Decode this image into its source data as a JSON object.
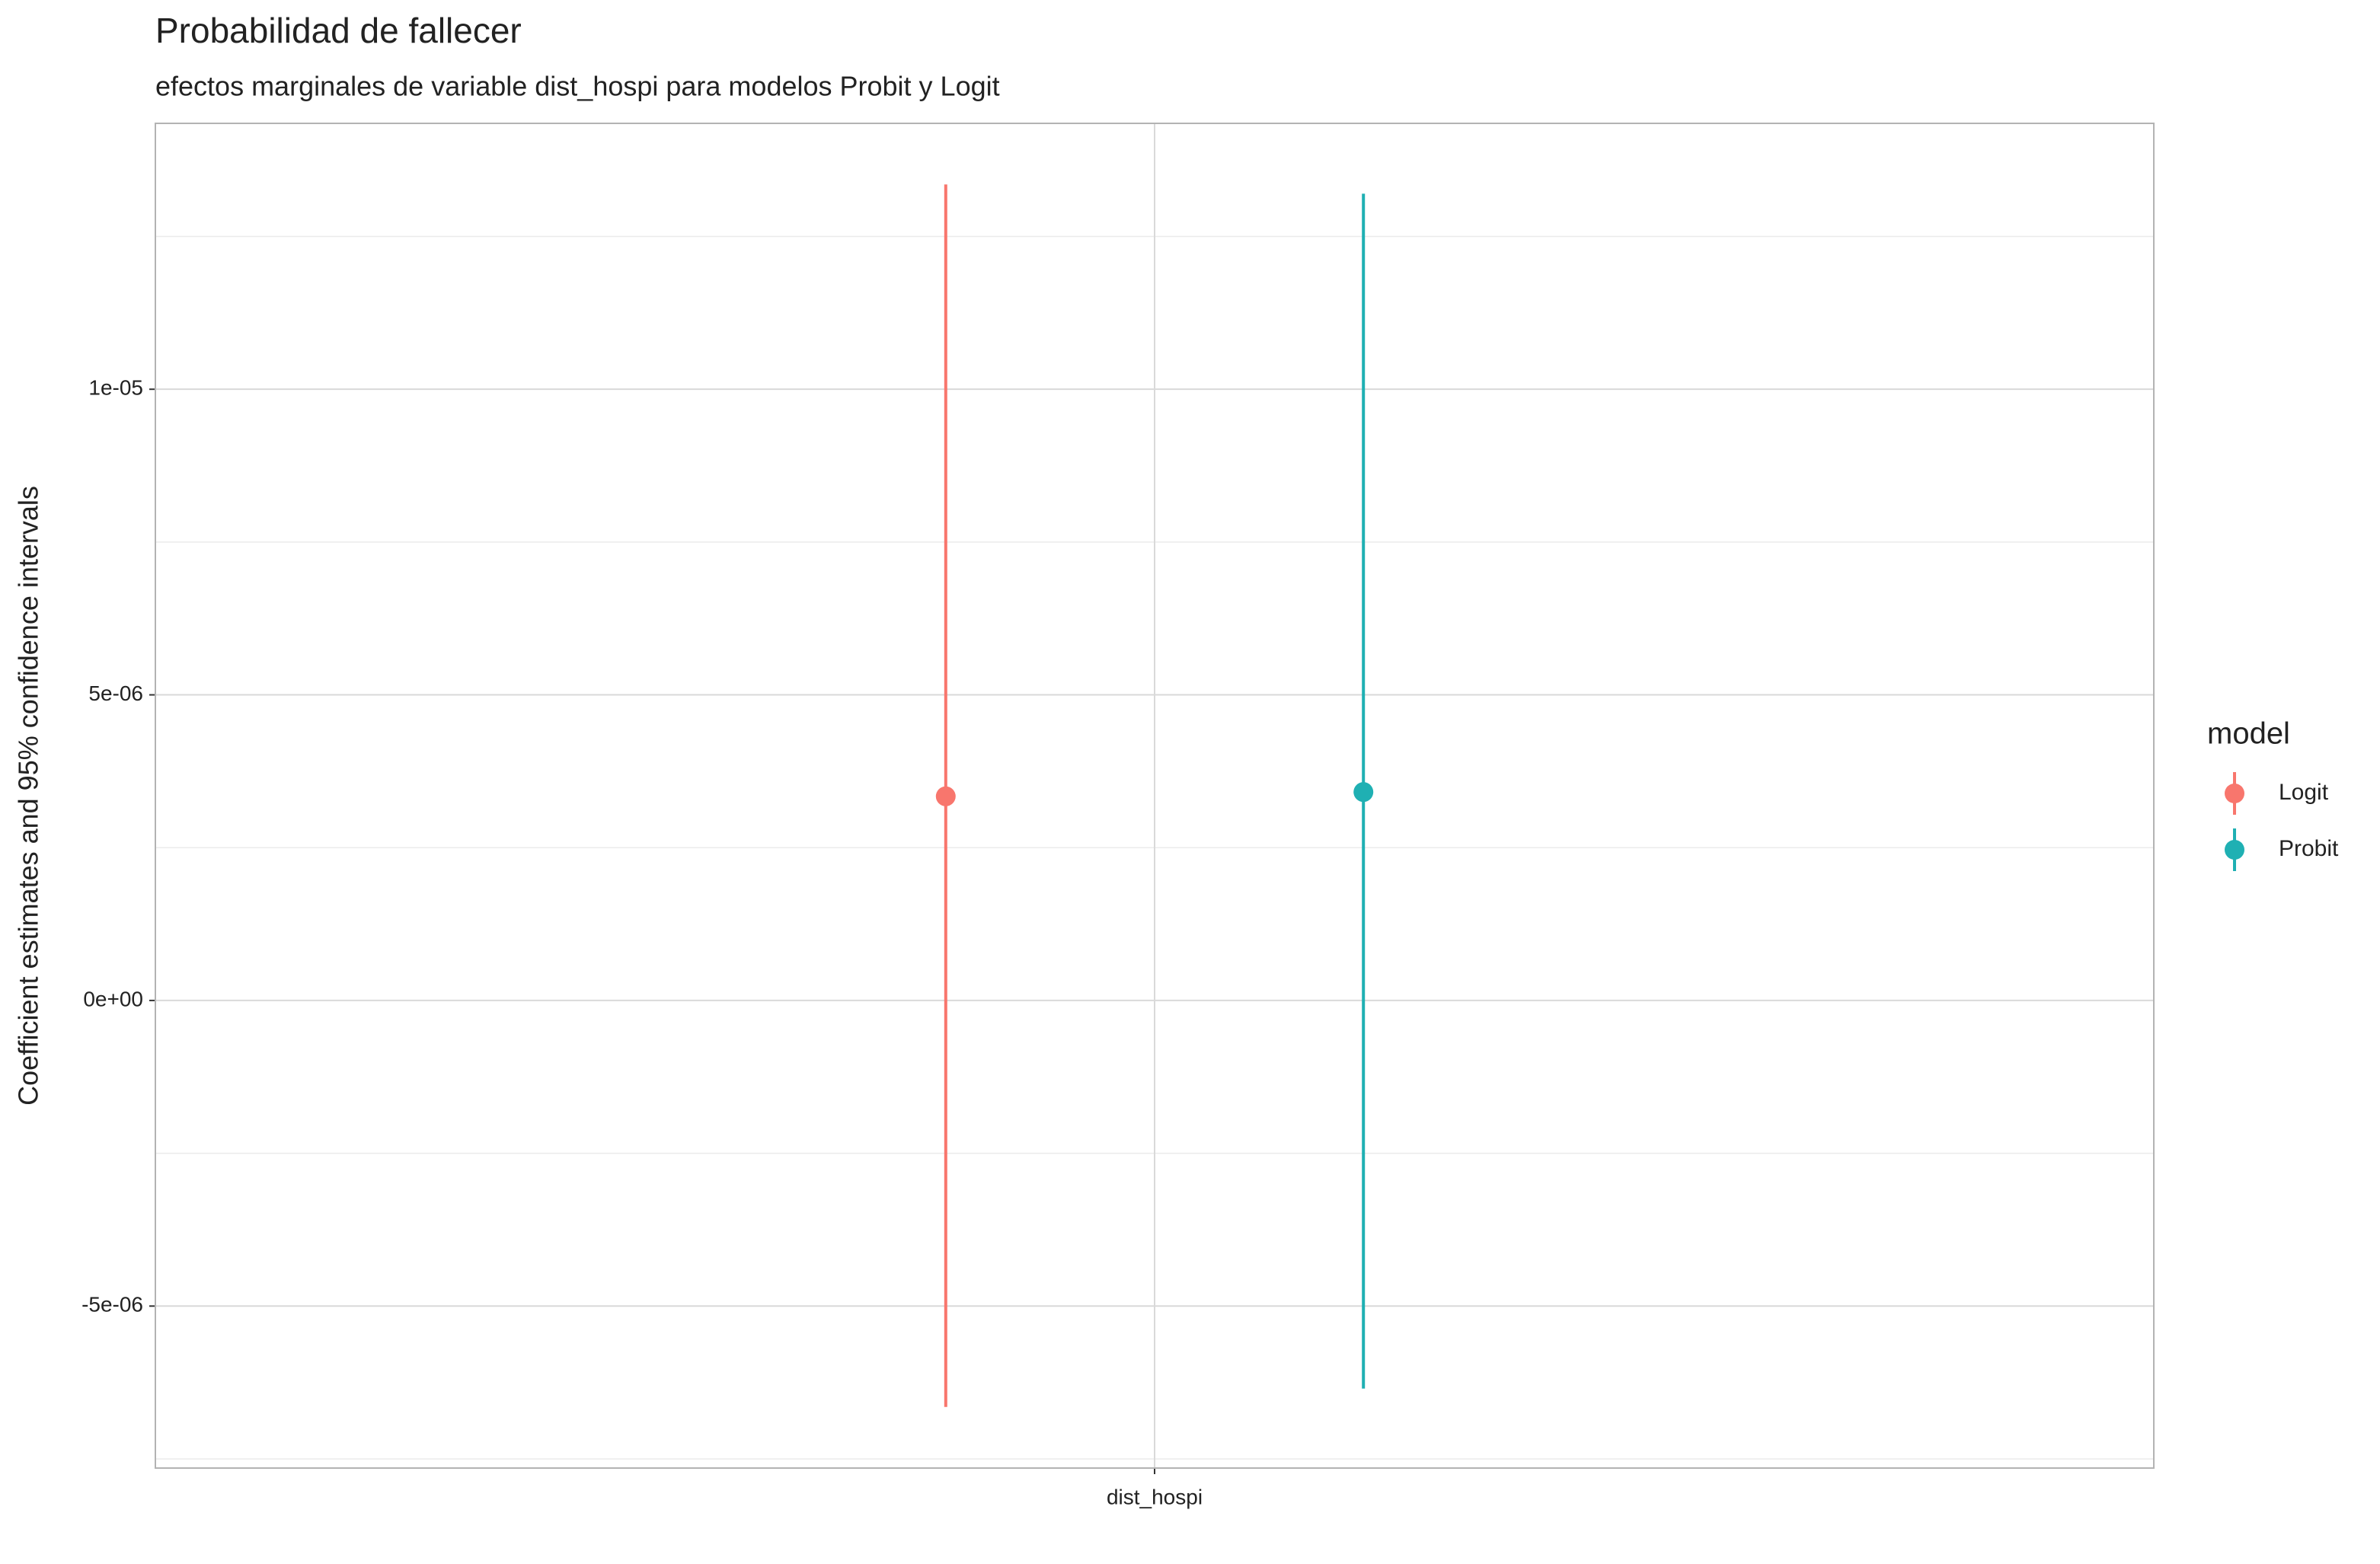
{
  "chart_data": {
    "type": "pointrange",
    "title": "Probabilidad de fallecer",
    "subtitle": "efectos marginales de variable dist_hospi para modelos Probit y Logit",
    "y_label": "Coefficient estimates and 95% confidence intervals",
    "categories": [
      "dist_hospi"
    ],
    "legend_title": "model",
    "legend_position": "right",
    "grid": true,
    "series": [
      {
        "name": "Logit",
        "color": "#f8766d",
        "values": [
          3.34e-06
        ],
        "lower": [
          -6.65e-06
        ],
        "upper": [
          1.335e-05
        ]
      },
      {
        "name": "Probit",
        "color": "#1fb0b3",
        "values": [
          3.41e-06
        ],
        "lower": [
          -6.35e-06
        ],
        "upper": [
          1.32e-05
        ]
      }
    ],
    "ylim": [
      -7.65e-06,
      1.435e-05
    ],
    "yticks": [
      {
        "value": -5e-06,
        "label": "-5e-06"
      },
      {
        "value": 0,
        "label": "0e+00"
      },
      {
        "value": 5e-06,
        "label": "5e-06"
      },
      {
        "value": 1e-05,
        "label": "1e-05"
      }
    ],
    "yminorticks": [
      -7.5e-06,
      -2.5e-06,
      2.5e-06,
      7.5e-06,
      1.25e-05
    ]
  }
}
